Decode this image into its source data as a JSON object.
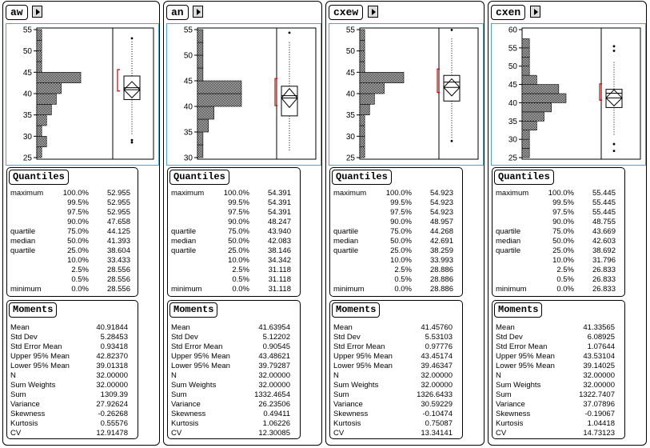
{
  "quantile_labels": [
    "maximum",
    "",
    "",
    "",
    "quartile",
    "median",
    "quartile",
    "",
    "",
    "",
    "minimum"
  ],
  "quantile_pcts": [
    "100.0%",
    "99.5%",
    "97.5%",
    "90.0%",
    "75.0%",
    "50.0%",
    "25.0%",
    "10.0%",
    "2.5%",
    "0.5%",
    "0.0%"
  ],
  "moment_labels": [
    "Mean",
    "Std Dev",
    "Std Error Mean",
    "Upper 95% Mean",
    "Lower 95% Mean",
    "N",
    "Sum Weights",
    "Sum",
    "Variance",
    "Skewness",
    "Kurtosis",
    "CV"
  ],
  "quantiles_title": "Quantiles",
  "moments_title": "Moments",
  "colors": {
    "frame": "#4aa8c8",
    "ci_bracket": "#cc0000"
  },
  "columns": [
    {
      "name": "aw",
      "axis": {
        "min": 25,
        "max": 55,
        "ticks": [
          25,
          30,
          35,
          40,
          45,
          50,
          55
        ]
      },
      "histogram": [
        {
          "from": 25,
          "to": 27.5,
          "count": 1
        },
        {
          "from": 27.5,
          "to": 30,
          "count": 2
        },
        {
          "from": 30,
          "to": 32.5,
          "count": 1
        },
        {
          "from": 32.5,
          "to": 35,
          "count": 2
        },
        {
          "from": 35,
          "to": 37.5,
          "count": 3
        },
        {
          "from": 37.5,
          "to": 40,
          "count": 4
        },
        {
          "from": 40,
          "to": 42.5,
          "count": 5
        },
        {
          "from": 42.5,
          "to": 45,
          "count": 9
        },
        {
          "from": 45,
          "to": 47.5,
          "count": 1
        },
        {
          "from": 47.5,
          "to": 50,
          "count": 1
        },
        {
          "from": 50,
          "to": 52.5,
          "count": 1
        },
        {
          "from": 52.5,
          "to": 55,
          "count": 1
        }
      ],
      "outliers": [
        52.955,
        28.556,
        29.1
      ],
      "quantile_values": [
        "52.955",
        "52.955",
        "52.955",
        "47.658",
        "44.125",
        "41.393",
        "38.604",
        "33.433",
        "28.556",
        "28.556",
        "28.556"
      ],
      "moment_values": [
        "40.91844",
        "5.28453",
        "0.93418",
        "42.82370",
        "39.01318",
        "32.00000",
        "32.00000",
        "1309.39",
        "27.92624",
        "-0.26268",
        "0.55576",
        "12.91478"
      ]
    },
    {
      "name": "an",
      "axis": {
        "min": 30,
        "max": 55,
        "ticks": [
          30,
          35,
          40,
          45,
          50,
          55
        ]
      },
      "histogram": [
        {
          "from": 30,
          "to": 32.5,
          "count": 1
        },
        {
          "from": 32.5,
          "to": 35,
          "count": 1
        },
        {
          "from": 35,
          "to": 37.5,
          "count": 2
        },
        {
          "from": 37.5,
          "to": 40,
          "count": 3
        },
        {
          "from": 40,
          "to": 42.5,
          "count": 8
        },
        {
          "from": 42.5,
          "to": 45,
          "count": 8
        },
        {
          "from": 45,
          "to": 47.5,
          "count": 1
        },
        {
          "from": 47.5,
          "to": 50,
          "count": 1
        },
        {
          "from": 50,
          "to": 52.5,
          "count": 1
        },
        {
          "from": 52.5,
          "to": 55,
          "count": 1
        }
      ],
      "outliers": [
        54.391
      ],
      "quantile_values": [
        "54.391",
        "54.391",
        "54.391",
        "48.247",
        "43.940",
        "42.083",
        "38.146",
        "34.342",
        "31.118",
        "31.118",
        "31.118"
      ],
      "moment_values": [
        "41.63954",
        "5.12202",
        "0.90545",
        "43.48621",
        "39.79287",
        "32.00000",
        "32.00000",
        "1332.4654",
        "26.23506",
        "0.49411",
        "1.06226",
        "12.30085"
      ]
    },
    {
      "name": "cxew",
      "axis": {
        "min": 25,
        "max": 55,
        "ticks": [
          25,
          30,
          35,
          40,
          45,
          50,
          55
        ]
      },
      "histogram": [
        {
          "from": 25,
          "to": 27.5,
          "count": 1
        },
        {
          "from": 27.5,
          "to": 30,
          "count": 1
        },
        {
          "from": 30,
          "to": 32.5,
          "count": 1
        },
        {
          "from": 32.5,
          "to": 35,
          "count": 1
        },
        {
          "from": 35,
          "to": 37.5,
          "count": 2
        },
        {
          "from": 37.5,
          "to": 40,
          "count": 3
        },
        {
          "from": 40,
          "to": 42.5,
          "count": 5
        },
        {
          "from": 42.5,
          "to": 45,
          "count": 9
        },
        {
          "from": 45,
          "to": 47.5,
          "count": 1
        },
        {
          "from": 47.5,
          "to": 50,
          "count": 1
        },
        {
          "from": 50,
          "to": 52.5,
          "count": 1
        },
        {
          "from": 52.5,
          "to": 55,
          "count": 1
        }
      ],
      "outliers": [
        54.923,
        28.886
      ],
      "quantile_values": [
        "54.923",
        "54.923",
        "54.923",
        "48.957",
        "44.268",
        "42.691",
        "38.259",
        "33.993",
        "28.886",
        "28.886",
        "28.886"
      ],
      "moment_values": [
        "41.45760",
        "5.53103",
        "0.97776",
        "43.45174",
        "39.46347",
        "32.00000",
        "32.00000",
        "1326.6433",
        "30.59229",
        "-0.10474",
        "0.75087",
        "13.34141"
      ]
    },
    {
      "name": "cxen",
      "axis": {
        "min": 25,
        "max": 60,
        "ticks": [
          25,
          30,
          35,
          40,
          45,
          50,
          55,
          60
        ]
      },
      "histogram": [
        {
          "from": 25,
          "to": 27.5,
          "count": 1
        },
        {
          "from": 27.5,
          "to": 30,
          "count": 1
        },
        {
          "from": 30,
          "to": 32.5,
          "count": 1
        },
        {
          "from": 32.5,
          "to": 35,
          "count": 2
        },
        {
          "from": 35,
          "to": 37.5,
          "count": 3
        },
        {
          "from": 37.5,
          "to": 40,
          "count": 4
        },
        {
          "from": 40,
          "to": 42.5,
          "count": 6
        },
        {
          "from": 42.5,
          "to": 45,
          "count": 5
        },
        {
          "from": 45,
          "to": 47.5,
          "count": 2
        },
        {
          "from": 47.5,
          "to": 50,
          "count": 1
        },
        {
          "from": 50,
          "to": 52.5,
          "count": 1
        },
        {
          "from": 52.5,
          "to": 55,
          "count": 1
        },
        {
          "from": 55,
          "to": 57.5,
          "count": 1
        }
      ],
      "outliers": [
        55.445,
        54.2,
        28.7,
        26.833
      ],
      "quantile_values": [
        "55.445",
        "55.445",
        "55.445",
        "48.755",
        "43.669",
        "42.603",
        "38.692",
        "31.796",
        "26.833",
        "26.833",
        "26.833"
      ],
      "moment_values": [
        "41.33565",
        "6.08925",
        "1.07644",
        "43.53104",
        "39.14025",
        "32.00000",
        "32.00000",
        "1322.7407",
        "37.07896",
        "-0.19067",
        "1.04418",
        "14.73123"
      ]
    }
  ]
}
